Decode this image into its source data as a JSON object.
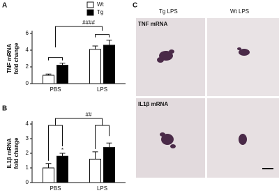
{
  "panel_labels": [
    "A",
    "B",
    "C"
  ],
  "chart_data": [
    {
      "type": "bar",
      "ylabel": [
        "TNF mRNA",
        "fold change"
      ],
      "categories": [
        "PBS",
        "LPS"
      ],
      "series": [
        {
          "name": "Wt",
          "color": "#ffffff",
          "values": [
            1.0,
            4.1
          ],
          "errors": [
            0.15,
            0.4
          ]
        },
        {
          "name": "Tg",
          "color": "#000000",
          "values": [
            2.2,
            4.6
          ],
          "errors": [
            0.25,
            0.6
          ]
        }
      ],
      "ylim": [
        0,
        6
      ],
      "yticks": [
        0,
        2,
        4,
        6
      ],
      "annotations": [
        "####"
      ]
    },
    {
      "type": "bar",
      "ylabel": [
        "IL1β mRNA",
        "fold change"
      ],
      "categories": [
        "PBS",
        "LPS"
      ],
      "series": [
        {
          "name": "Wt",
          "color": "#ffffff",
          "values": [
            1.0,
            1.6
          ],
          "errors": [
            0.3,
            0.5
          ]
        },
        {
          "name": "Tg",
          "color": "#000000",
          "values": [
            1.8,
            2.4
          ],
          "errors": [
            0.2,
            0.3
          ]
        }
      ],
      "ylim": [
        0,
        4
      ],
      "yticks": [
        0,
        1,
        2,
        3,
        4
      ],
      "annotations": [
        "##",
        "*"
      ]
    }
  ],
  "micrographs": {
    "columns": [
      "Tg LPS",
      "Wt LPS"
    ],
    "rows": [
      "TNF mRNA",
      "IL1β mRNA"
    ]
  }
}
